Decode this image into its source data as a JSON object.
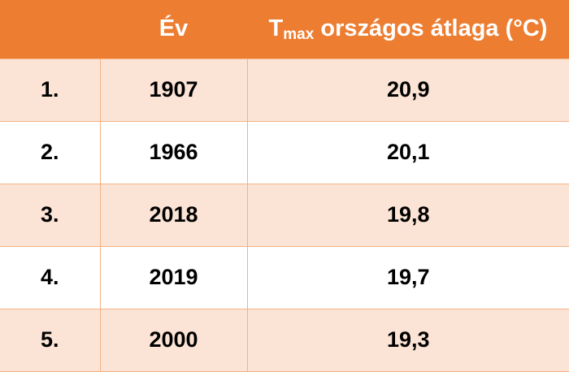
{
  "colors": {
    "header_bg": "#ed7d31",
    "header_text": "#ffffff",
    "band_row_bg": "#fbe4d5",
    "plain_row_bg": "#ffffff",
    "grid_line": "#f4b183"
  },
  "table": {
    "header": {
      "rank": "",
      "year": "Év",
      "tmax_main": "T",
      "tmax_sub": "max",
      "tmax_rest": " országos átlaga (°C)"
    },
    "rows": [
      {
        "rank": "1.",
        "year": "1907",
        "tmax": "20,9"
      },
      {
        "rank": "2.",
        "year": "1966",
        "tmax": "20,1"
      },
      {
        "rank": "3.",
        "year": "2018",
        "tmax": "19,8"
      },
      {
        "rank": "4.",
        "year": "2019",
        "tmax": "19,7"
      },
      {
        "rank": "5.",
        "year": "2000",
        "tmax": "19,3"
      }
    ]
  }
}
